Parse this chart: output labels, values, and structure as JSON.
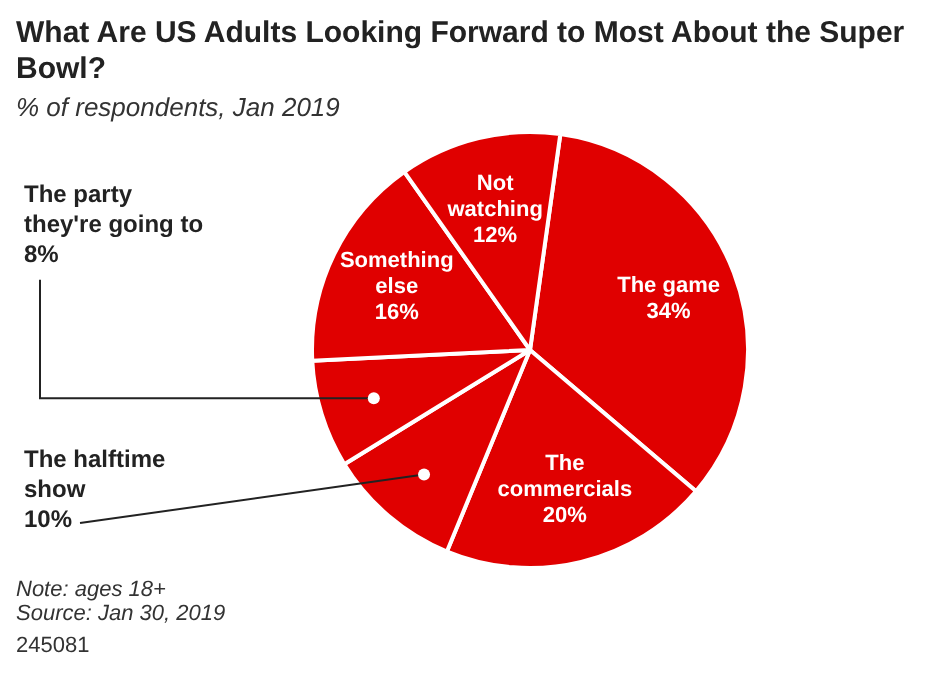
{
  "chart_data": {
    "type": "pie",
    "title": "What Are US Adults Looking Forward to Most About the Super Bowl?",
    "subtitle": "% of respondents, Jan 2019",
    "categories": [
      "The game",
      "The commercials",
      "The halftime show",
      "The party they're going to",
      "Something else",
      "Not watching"
    ],
    "values": [
      34,
      20,
      10,
      8,
      16,
      12
    ],
    "value_labels": [
      "34%",
      "20%",
      "10%",
      "8%",
      "16%",
      "12%"
    ],
    "colors": [
      "#e00000",
      "#e00000",
      "#e00000",
      "#e00000",
      "#e00000",
      "#e00000"
    ],
    "legend": false,
    "annotations": [
      "Note: ages 18+",
      "Source: Jan 30, 2019",
      "245081"
    ]
  }
}
